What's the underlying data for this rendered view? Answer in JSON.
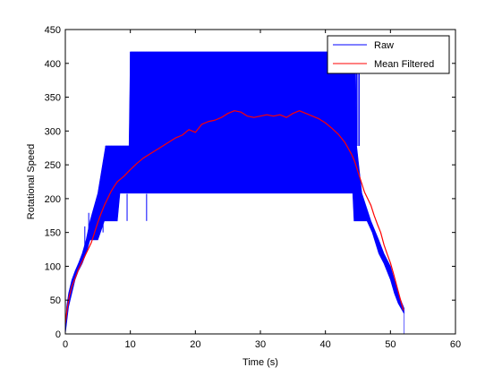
{
  "chart_data": {
    "type": "line",
    "title": "",
    "xlabel": "Time (s)",
    "ylabel": "Rotational Speed",
    "xlim": [
      0,
      60
    ],
    "ylim": [
      0,
      450
    ],
    "xticks": [
      0,
      10,
      20,
      30,
      40,
      50,
      60
    ],
    "yticks": [
      0,
      50,
      100,
      150,
      200,
      250,
      300,
      350,
      400,
      450
    ],
    "grid": false,
    "legend_position": "top-right",
    "series": [
      {
        "name": "Raw",
        "color": "#0000ff",
        "style": "dense quantized raw signal oscillating between discrete levels",
        "levels": [
          417,
          278,
          208,
          167,
          139,
          119,
          104,
          93
        ],
        "envelope_upper": [
          [
            0.0,
            0
          ],
          [
            0.2,
            40
          ],
          [
            0.5,
            60
          ],
          [
            1.0,
            80
          ],
          [
            1.5,
            93
          ],
          [
            2.0,
            104
          ],
          [
            2.6,
            119
          ],
          [
            3.2,
            139
          ],
          [
            3.8,
            167
          ],
          [
            5.0,
            208
          ],
          [
            6.2,
            278
          ],
          [
            9.8,
            278
          ],
          [
            10.0,
            417
          ],
          [
            44.6,
            417
          ],
          [
            44.8,
            278
          ],
          [
            45.6,
            208
          ],
          [
            47.0,
            167
          ],
          [
            48.2,
            139
          ],
          [
            49.0,
            119
          ],
          [
            50.0,
            100
          ],
          [
            50.6,
            80
          ],
          [
            51.2,
            60
          ],
          [
            51.8,
            45
          ],
          [
            52.1,
            38
          ],
          [
            52.1,
            0
          ]
        ],
        "envelope_lower": [
          [
            0.0,
            0
          ],
          [
            0.5,
            40
          ],
          [
            1.0,
            60
          ],
          [
            1.5,
            80
          ],
          [
            2.0,
            93
          ],
          [
            2.6,
            104
          ],
          [
            3.2,
            119
          ],
          [
            3.8,
            139
          ],
          [
            5.0,
            139
          ],
          [
            5.4,
            150
          ],
          [
            6.0,
            167
          ],
          [
            8.0,
            167
          ],
          [
            8.4,
            208
          ],
          [
            44.2,
            208
          ],
          [
            44.4,
            167
          ],
          [
            46.4,
            167
          ],
          [
            47.2,
            150
          ],
          [
            48.2,
            119
          ],
          [
            49.0,
            104
          ],
          [
            50.0,
            80
          ],
          [
            50.6,
            60
          ],
          [
            51.2,
            45
          ],
          [
            51.8,
            35
          ],
          [
            52.1,
            30
          ],
          [
            52.1,
            0
          ]
        ],
        "dropouts": [
          [
            3.0,
            119
          ],
          [
            3.6,
            139
          ],
          [
            4.6,
            139
          ],
          [
            5.8,
            150
          ],
          [
            7.8,
            167
          ],
          [
            9.5,
            167
          ],
          [
            12.5,
            167
          ]
        ]
      },
      {
        "name": "Mean Filtered",
        "color": "#ff0000",
        "x": [
          0,
          0.3,
          0.6,
          1,
          1.5,
          2,
          2.5,
          3,
          3.5,
          4,
          4.5,
          5,
          5.5,
          6,
          6.5,
          7,
          7.5,
          8,
          9,
          10,
          11,
          12,
          13,
          14,
          15,
          16,
          17,
          18,
          18.5,
          19,
          20,
          21,
          22,
          23,
          24,
          25,
          26,
          27,
          28,
          29,
          30,
          31,
          32,
          33,
          34,
          35,
          36,
          37,
          38,
          39,
          40,
          41,
          42,
          43,
          44,
          44.5,
          45,
          45.5,
          46,
          46.5,
          47,
          47.5,
          48,
          48.5,
          49,
          49.5,
          50,
          50.5,
          51,
          51.5,
          52
        ],
        "y": [
          15,
          38,
          55,
          70,
          82,
          95,
          105,
          115,
          125,
          135,
          150,
          165,
          178,
          190,
          200,
          210,
          218,
          225,
          233,
          243,
          252,
          260,
          266,
          272,
          278,
          284,
          290,
          294,
          298,
          302,
          298,
          310,
          314,
          316,
          320,
          326,
          330,
          328,
          322,
          320,
          322,
          324,
          322,
          324,
          320,
          326,
          330,
          326,
          322,
          318,
          312,
          304,
          295,
          283,
          266,
          255,
          240,
          225,
          210,
          200,
          190,
          175,
          162,
          150,
          132,
          118,
          105,
          88,
          70,
          52,
          35
        ]
      }
    ]
  }
}
